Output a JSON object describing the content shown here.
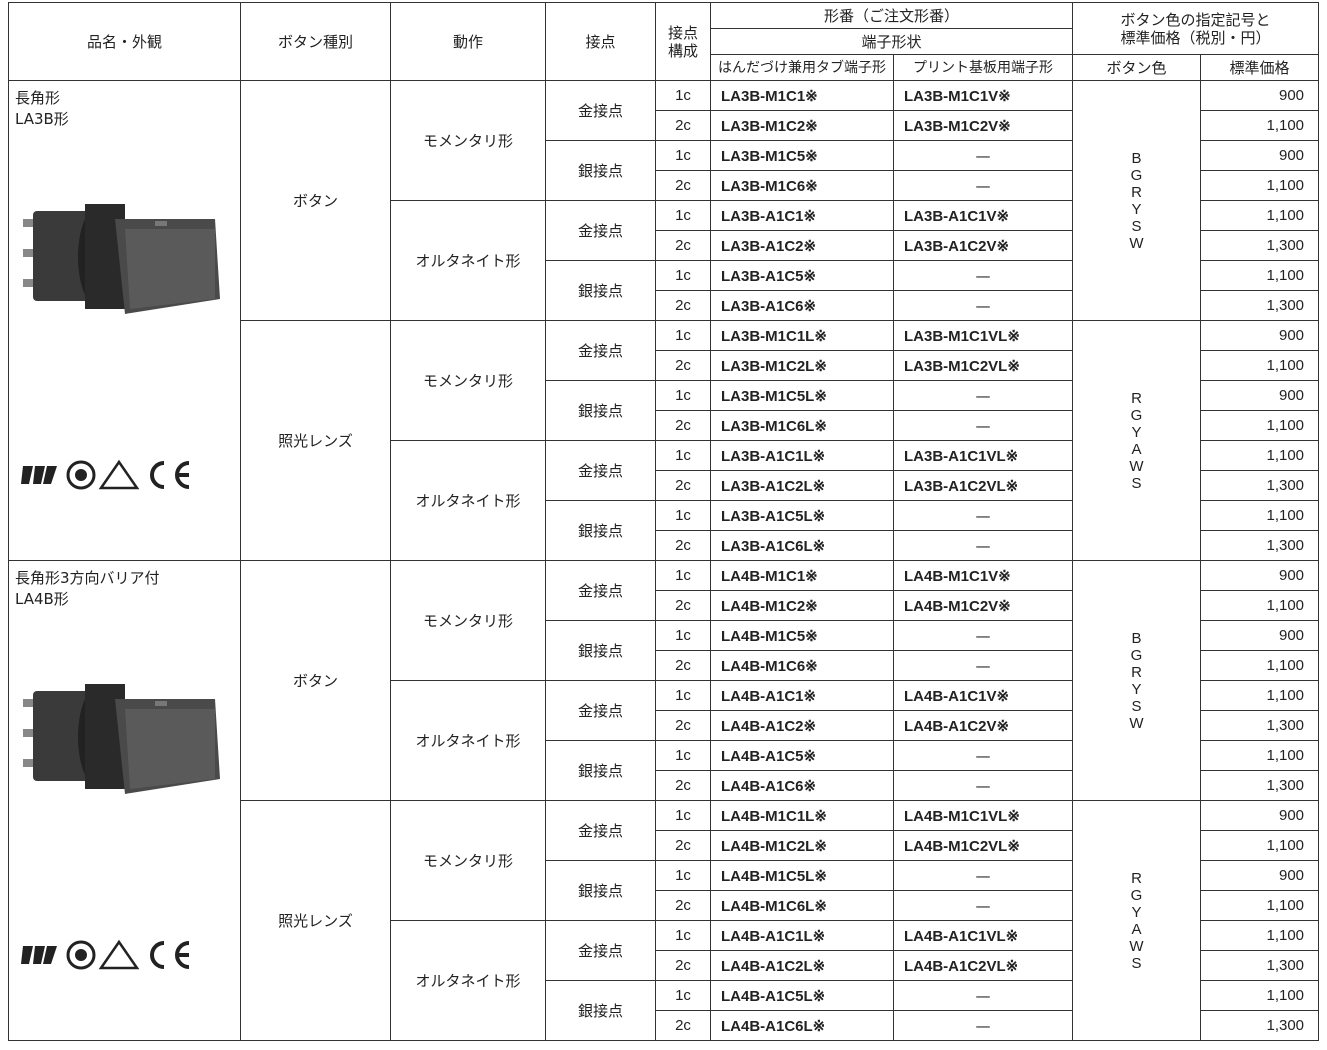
{
  "header": {
    "name": "品名・外観",
    "type": "ボタン種別",
    "action": "動作",
    "contact": "接点",
    "config": [
      "接点",
      "構成"
    ],
    "model": "形番（ご注文形番）",
    "terminal": "端子形状",
    "tab": "はんだづけ兼用タブ端子形",
    "pcb": "プリント基板用端子形",
    "color_price": [
      "ボタン色の指定記号と",
      "標準価格（税別・円）"
    ],
    "color": "ボタン色",
    "price": "標準価格"
  },
  "products": [
    {
      "name": [
        "長角形",
        "LA3B形"
      ],
      "types": [
        {
          "type": "ボタン",
          "colors": [
            "B",
            "G",
            "R",
            "Y",
            "S",
            "W"
          ],
          "actions": [
            {
              "action": "モメンタリ形",
              "contacts": [
                {
                  "contact": "金接点",
                  "rows": [
                    [
                      "1c",
                      "LA3B-M1C1※",
                      "LA3B-M1C1V※",
                      "900"
                    ],
                    [
                      "2c",
                      "LA3B-M1C2※",
                      "LA3B-M1C2V※",
                      "1,100"
                    ]
                  ]
                },
                {
                  "contact": "銀接点",
                  "rows": [
                    [
                      "1c",
                      "LA3B-M1C5※",
                      "—",
                      "900"
                    ],
                    [
                      "2c",
                      "LA3B-M1C6※",
                      "—",
                      "1,100"
                    ]
                  ]
                }
              ]
            },
            {
              "action": "オルタネイト形",
              "contacts": [
                {
                  "contact": "金接点",
                  "rows": [
                    [
                      "1c",
                      "LA3B-A1C1※",
                      "LA3B-A1C1V※",
                      "1,100"
                    ],
                    [
                      "2c",
                      "LA3B-A1C2※",
                      "LA3B-A1C2V※",
                      "1,300"
                    ]
                  ]
                },
                {
                  "contact": "銀接点",
                  "rows": [
                    [
                      "1c",
                      "LA3B-A1C5※",
                      "—",
                      "1,100"
                    ],
                    [
                      "2c",
                      "LA3B-A1C6※",
                      "—",
                      "1,300"
                    ]
                  ]
                }
              ]
            }
          ]
        },
        {
          "type": "照光レンズ",
          "colors": [
            "R",
            "G",
            "Y",
            "A",
            "W",
            "S"
          ],
          "actions": [
            {
              "action": "モメンタリ形",
              "contacts": [
                {
                  "contact": "金接点",
                  "rows": [
                    [
                      "1c",
                      "LA3B-M1C1L※",
                      "LA3B-M1C1VL※",
                      "900"
                    ],
                    [
                      "2c",
                      "LA3B-M1C2L※",
                      "LA3B-M1C2VL※",
                      "1,100"
                    ]
                  ]
                },
                {
                  "contact": "銀接点",
                  "rows": [
                    [
                      "1c",
                      "LA3B-M1C5L※",
                      "—",
                      "900"
                    ],
                    [
                      "2c",
                      "LA3B-M1C6L※",
                      "—",
                      "1,100"
                    ]
                  ]
                }
              ]
            },
            {
              "action": "オルタネイト形",
              "contacts": [
                {
                  "contact": "金接点",
                  "rows": [
                    [
                      "1c",
                      "LA3B-A1C1L※",
                      "LA3B-A1C1VL※",
                      "1,100"
                    ],
                    [
                      "2c",
                      "LA3B-A1C2L※",
                      "LA3B-A1C2VL※",
                      "1,300"
                    ]
                  ]
                },
                {
                  "contact": "銀接点",
                  "rows": [
                    [
                      "1c",
                      "LA3B-A1C5L※",
                      "—",
                      "1,100"
                    ],
                    [
                      "2c",
                      "LA3B-A1C6L※",
                      "—",
                      "1,300"
                    ]
                  ]
                }
              ]
            }
          ]
        }
      ]
    },
    {
      "name": [
        "長角形3方向バリア付",
        "LA4B形"
      ],
      "types": [
        {
          "type": "ボタン",
          "colors": [
            "B",
            "G",
            "R",
            "Y",
            "S",
            "W"
          ],
          "actions": [
            {
              "action": "モメンタリ形",
              "contacts": [
                {
                  "contact": "金接点",
                  "rows": [
                    [
                      "1c",
                      "LA4B-M1C1※",
                      "LA4B-M1C1V※",
                      "900"
                    ],
                    [
                      "2c",
                      "LA4B-M1C2※",
                      "LA4B-M1C2V※",
                      "1,100"
                    ]
                  ]
                },
                {
                  "contact": "銀接点",
                  "rows": [
                    [
                      "1c",
                      "LA4B-M1C5※",
                      "—",
                      "900"
                    ],
                    [
                      "2c",
                      "LA4B-M1C6※",
                      "—",
                      "1,100"
                    ]
                  ]
                }
              ]
            },
            {
              "action": "オルタネイト形",
              "contacts": [
                {
                  "contact": "金接点",
                  "rows": [
                    [
                      "1c",
                      "LA4B-A1C1※",
                      "LA4B-A1C1V※",
                      "1,100"
                    ],
                    [
                      "2c",
                      "LA4B-A1C2※",
                      "LA4B-A1C2V※",
                      "1,300"
                    ]
                  ]
                },
                {
                  "contact": "銀接点",
                  "rows": [
                    [
                      "1c",
                      "LA4B-A1C5※",
                      "—",
                      "1,100"
                    ],
                    [
                      "2c",
                      "LA4B-A1C6※",
                      "—",
                      "1,300"
                    ]
                  ]
                }
              ]
            }
          ]
        },
        {
          "type": "照光レンズ",
          "colors": [
            "R",
            "G",
            "Y",
            "A",
            "W",
            "S"
          ],
          "actions": [
            {
              "action": "モメンタリ形",
              "contacts": [
                {
                  "contact": "金接点",
                  "rows": [
                    [
                      "1c",
                      "LA4B-M1C1L※",
                      "LA4B-M1C1VL※",
                      "900"
                    ],
                    [
                      "2c",
                      "LA4B-M1C2L※",
                      "LA4B-M1C2VL※",
                      "1,100"
                    ]
                  ]
                },
                {
                  "contact": "銀接点",
                  "rows": [
                    [
                      "1c",
                      "LA4B-M1C5L※",
                      "—",
                      "900"
                    ],
                    [
                      "2c",
                      "LA4B-M1C6L※",
                      "—",
                      "1,100"
                    ]
                  ]
                }
              ]
            },
            {
              "action": "オルタネイト形",
              "contacts": [
                {
                  "contact": "金接点",
                  "rows": [
                    [
                      "1c",
                      "LA4B-A1C1L※",
                      "LA4B-A1C1VL※",
                      "1,100"
                    ],
                    [
                      "2c",
                      "LA4B-A1C2L※",
                      "LA4B-A1C2VL※",
                      "1,300"
                    ]
                  ]
                },
                {
                  "contact": "銀接点",
                  "rows": [
                    [
                      "1c",
                      "LA4B-A1C5L※",
                      "—",
                      "1,100"
                    ],
                    [
                      "2c",
                      "LA4B-A1C6L※",
                      "—",
                      "1,300"
                    ]
                  ]
                }
              ]
            }
          ]
        }
      ]
    }
  ]
}
